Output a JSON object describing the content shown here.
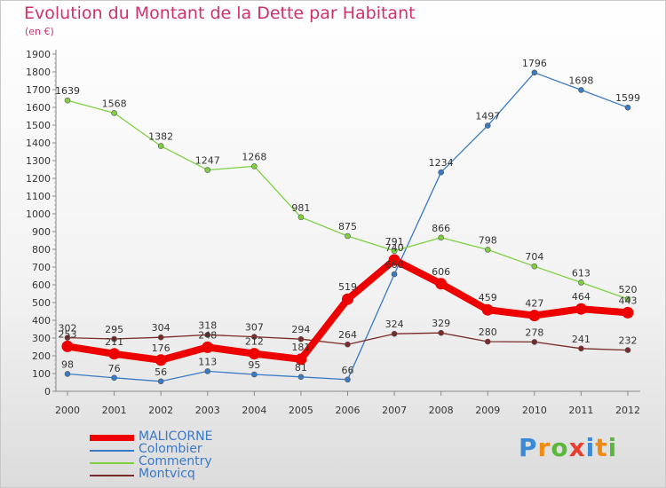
{
  "chart_data": {
    "type": "line",
    "title": "Evolution du Montant de la Dette par Habitant",
    "subtitle": "(en €)",
    "x": [
      "2000",
      "2001",
      "2002",
      "2003",
      "2004",
      "2005",
      "2006",
      "2007",
      "2008",
      "2009",
      "2010",
      "2011",
      "2012"
    ],
    "ylim": [
      0,
      1900
    ],
    "yticks": [
      0,
      100,
      200,
      300,
      400,
      500,
      600,
      700,
      800,
      900,
      1000,
      1100,
      1200,
      1300,
      1400,
      1500,
      1600,
      1700,
      1800,
      1900
    ],
    "grid": false,
    "legend_position": "bottom-left",
    "series": [
      {
        "name": "MALICORNE",
        "color": "#ee0000",
        "values": [
          253,
          211,
          176,
          248,
          212,
          181,
          519,
          740,
          606,
          459,
          427,
          464,
          443
        ]
      },
      {
        "name": "Colombier",
        "color": "#3a7ac4",
        "values": [
          98,
          76,
          56,
          113,
          95,
          81,
          66,
          660,
          1234,
          1497,
          1796,
          1698,
          1599
        ]
      },
      {
        "name": "Commentry",
        "color": "#7ed040",
        "values": [
          1639,
          1568,
          1382,
          1247,
          1268,
          981,
          875,
          791,
          866,
          798,
          704,
          613,
          520
        ]
      },
      {
        "name": "Montvicq",
        "color": "#7a2a2a",
        "values": [
          302,
          295,
          304,
          318,
          307,
          294,
          264,
          324,
          329,
          280,
          278,
          241,
          232
        ]
      }
    ]
  },
  "logo": {
    "text": "Proxiti"
  }
}
